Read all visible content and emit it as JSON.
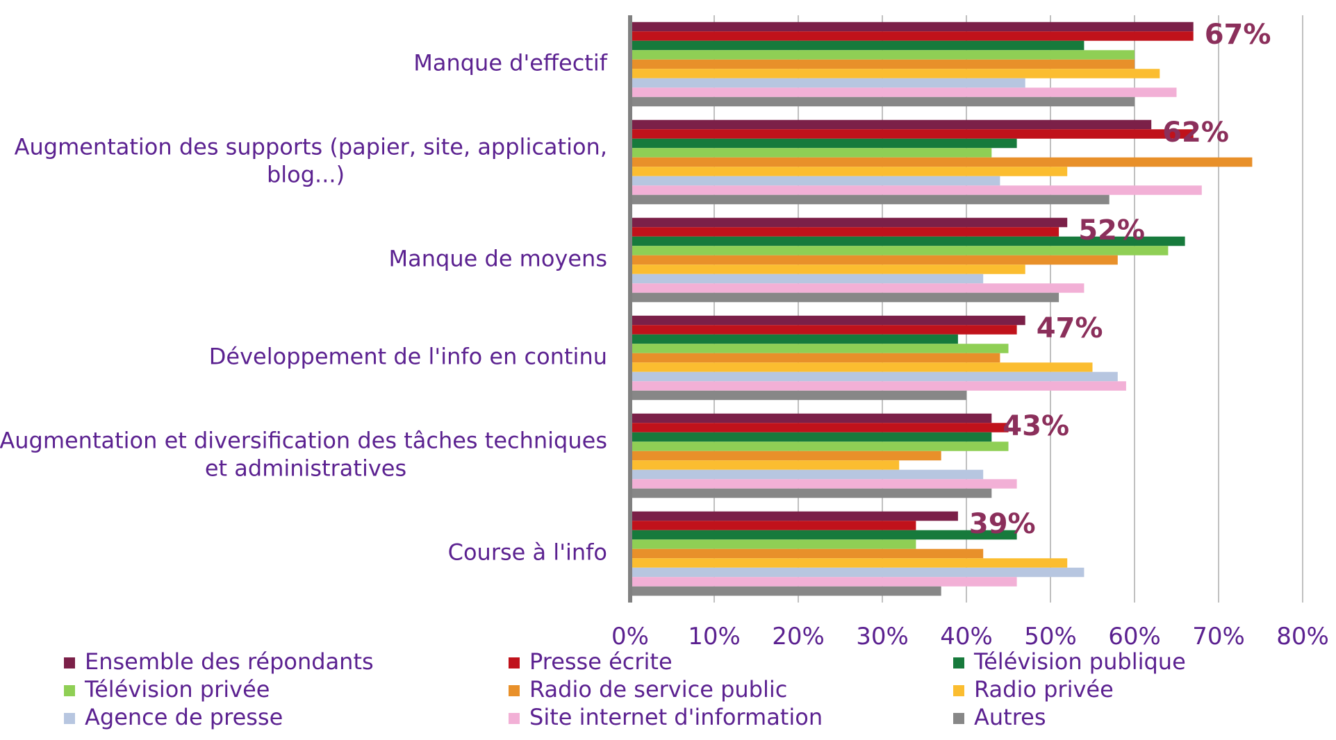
{
  "chart_data": {
    "type": "bar",
    "orientation": "horizontal",
    "title": "",
    "xlabel": "",
    "ylabel": "",
    "xlim": [
      0,
      0.8
    ],
    "x_ticks": [
      "0%",
      "10%",
      "20%",
      "30%",
      "40%",
      "50%",
      "60%",
      "70%",
      "80%"
    ],
    "grid": "vertical",
    "legend_position": "bottom",
    "categories": [
      "Manque d'effectif",
      "Augmentation des supports (papier, site, application, blog...)",
      "Manque de moyens",
      "Développement de l'info en continu",
      "Augmentation et diversification des tâches techniques et administratives",
      "Course à l'info"
    ],
    "category_label_lines": [
      [
        "Manque d'effectif"
      ],
      [
        "Augmentation des supports (papier, site, application,",
        "blog...)"
      ],
      [
        "Manque de moyens"
      ],
      [
        "Développement de l'info en continu"
      ],
      [
        "Augmentation et diversification des tâches techniques",
        "et administratives"
      ],
      [
        "Course à l'info"
      ]
    ],
    "series": [
      {
        "name": "Ensemble des répondants",
        "color": "#7b2048",
        "values": [
          0.67,
          0.62,
          0.52,
          0.47,
          0.43,
          0.39
        ]
      },
      {
        "name": "Presse écrite",
        "color": "#c0121b",
        "values": [
          0.67,
          0.67,
          0.51,
          0.46,
          0.45,
          0.34
        ]
      },
      {
        "name": "Télévision publique",
        "color": "#177a3c",
        "values": [
          0.54,
          0.46,
          0.66,
          0.39,
          0.43,
          0.46
        ]
      },
      {
        "name": "Télévision privée",
        "color": "#8fcf55",
        "values": [
          0.6,
          0.43,
          0.64,
          0.45,
          0.45,
          0.34
        ]
      },
      {
        "name": "Radio de service public",
        "color": "#e8902a",
        "values": [
          0.6,
          0.74,
          0.58,
          0.44,
          0.37,
          0.42
        ]
      },
      {
        "name": "Radio privée",
        "color": "#fbbd30",
        "values": [
          0.63,
          0.52,
          0.47,
          0.55,
          0.32,
          0.52
        ]
      },
      {
        "name": "Agence de presse",
        "color": "#b7c6e0",
        "values": [
          0.47,
          0.44,
          0.42,
          0.58,
          0.42,
          0.54
        ]
      },
      {
        "name": "Site internet d'information",
        "color": "#f2b0d6",
        "values": [
          0.65,
          0.68,
          0.54,
          0.59,
          0.46,
          0.46
        ]
      },
      {
        "name": "Autres",
        "color": "#878787",
        "values": [
          0.6,
          0.57,
          0.51,
          0.4,
          0.43,
          0.37
        ]
      }
    ],
    "data_labels": [
      "67%",
      "62%",
      "52%",
      "47%",
      "43%",
      "39%"
    ],
    "colors": {
      "category_label": "#5b2190",
      "tick_label": "#5b2190",
      "legend_text": "#5b2190",
      "data_label": "#8b2f5b",
      "gridline": "#c0c0c0",
      "axis": "#808080"
    }
  }
}
